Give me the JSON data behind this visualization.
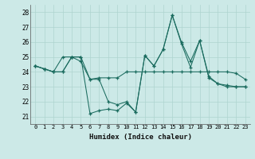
{
  "xlabel": "Humidex (Indice chaleur)",
  "bg_color": "#cce9e7",
  "line_color": "#1a6b5e",
  "grid_color": "#aed4d0",
  "x_ticks": [
    0,
    1,
    2,
    3,
    4,
    5,
    6,
    7,
    8,
    9,
    10,
    11,
    12,
    13,
    14,
    15,
    16,
    17,
    18,
    19,
    20,
    21,
    22,
    23
  ],
  "y_ticks": [
    21,
    22,
    23,
    24,
    25,
    26,
    27,
    28
  ],
  "xlim": [
    -0.5,
    23.5
  ],
  "ylim": [
    20.5,
    28.5
  ],
  "series": [
    [
      24.4,
      24.2,
      24.0,
      25.0,
      25.0,
      24.7,
      23.5,
      23.5,
      22.0,
      21.8,
      22.0,
      21.3,
      25.1,
      24.4,
      25.5,
      27.8,
      26.0,
      24.7,
      26.1,
      23.7,
      23.2,
      23.0,
      23.0,
      23.0
    ],
    [
      24.4,
      24.2,
      24.0,
      24.0,
      25.0,
      25.0,
      21.2,
      21.4,
      21.5,
      21.4,
      21.9,
      21.3,
      25.1,
      24.4,
      25.5,
      27.8,
      25.9,
      24.3,
      26.1,
      23.6,
      23.2,
      23.1,
      23.0,
      23.0
    ],
    [
      24.4,
      24.2,
      24.0,
      24.0,
      25.0,
      25.0,
      23.5,
      23.6,
      23.6,
      23.6,
      24.0,
      24.0,
      24.0,
      24.0,
      24.0,
      24.0,
      24.0,
      24.0,
      24.0,
      24.0,
      24.0,
      24.0,
      23.9,
      23.5
    ]
  ]
}
